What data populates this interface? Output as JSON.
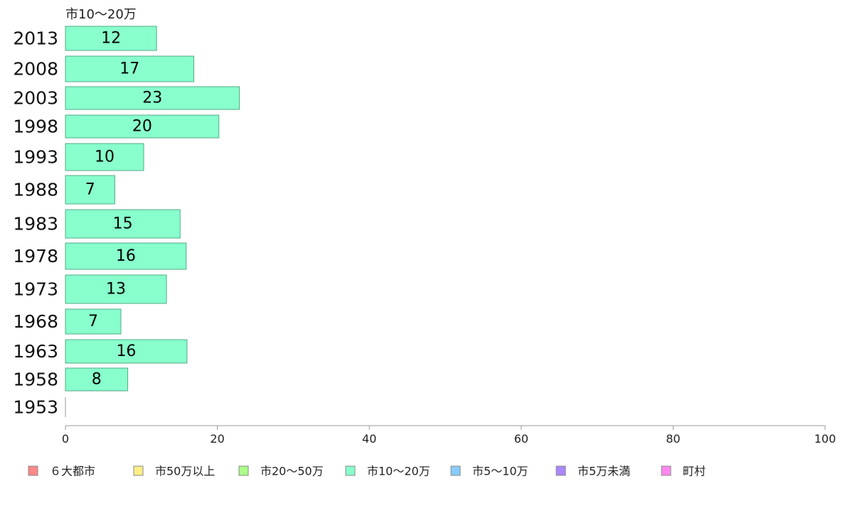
{
  "chart_data": {
    "type": "bar",
    "orientation": "horizontal",
    "title": "市10〜20万",
    "categories": [
      "2013",
      "2008",
      "2003",
      "1998",
      "1993",
      "1988",
      "1983",
      "1978",
      "1973",
      "1968",
      "1963",
      "1958",
      "1953"
    ],
    "series": [
      {
        "name": "市10〜20万",
        "values": [
          12,
          17,
          23,
          20,
          10,
          7,
          15,
          16,
          13,
          7,
          16,
          8,
          0
        ],
        "bar_lengths": [
          12,
          16.9,
          22.9,
          20.2,
          10.3,
          6.5,
          15.1,
          15.9,
          13.3,
          7.3,
          16.0,
          8.2,
          0
        ]
      }
    ],
    "xlim": [
      0,
      100
    ],
    "xticks": [
      "0",
      "20",
      "40",
      "60",
      "80",
      "100"
    ],
    "grid": false,
    "legend": {
      "position": "bottom",
      "items": [
        {
          "name": "６大都市",
          "color": "#ff8888"
        },
        {
          "name": "市50万以上",
          "color": "#ffee88"
        },
        {
          "name": "市20〜50万",
          "color": "#aaff88"
        },
        {
          "name": "市10〜20万",
          "color": "#88ffcc"
        },
        {
          "name": "市5〜10万",
          "color": "#88ccff"
        },
        {
          "name": "市5万未満",
          "color": "#aa88ff"
        },
        {
          "name": "町村",
          "color": "#ff88ee"
        }
      ]
    },
    "bar_color": "#88ffcc",
    "bar_stroke": "#55aa88"
  }
}
